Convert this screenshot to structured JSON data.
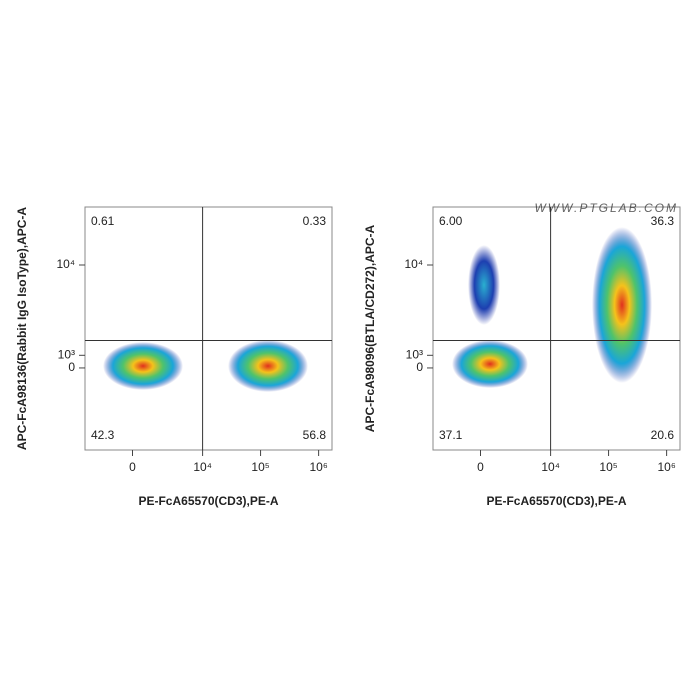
{
  "chart_data": [
    {
      "type": "density",
      "x_label": "PE-FcA65570(CD3),PE-A",
      "y_label": "APC-FcA98136(Rabbit IgG IsoType),APC-A",
      "xscale": "biexponential",
      "yscale": "biexponential",
      "xlim": [
        -4000,
        1700000
      ],
      "ylim": [
        -7400,
        20600
      ],
      "xticks": [
        0,
        {
          "value": 10000,
          "label": "10⁴"
        },
        {
          "value": 100000,
          "label": "10⁵"
        },
        {
          "value": 1000000,
          "label": "10⁶"
        }
      ],
      "yticks": [
        0,
        {
          "value": 1000,
          "label": "10³"
        },
        {
          "value": 10000,
          "label": "10⁴"
        }
      ],
      "gate": {
        "x": 10000,
        "y": 2200
      },
      "quadrant_order": [
        "top-left",
        "top-right",
        "bottom-left",
        "bottom-right"
      ],
      "values": [
        0.61,
        0.33,
        42.3,
        56.8
      ]
    },
    {
      "type": "density",
      "x_label": "PE-FcA65570(CD3),PE-A",
      "y_label": "APC-FcA98096(BTLA/CD272),APC-A",
      "xscale": "biexponential",
      "yscale": "biexponential",
      "xlim": [
        -4000,
        1700000
      ],
      "ylim": [
        -7400,
        20600
      ],
      "xticks": [
        0,
        {
          "value": 10000,
          "label": "10⁴"
        },
        {
          "value": 100000,
          "label": "10⁵"
        },
        {
          "value": 1000000,
          "label": "10⁶"
        }
      ],
      "yticks": [
        0,
        {
          "value": 1000,
          "label": "10³"
        },
        {
          "value": 10000,
          "label": "10⁴"
        }
      ],
      "gate": {
        "x": 10000,
        "y": 2200
      },
      "quadrant_order": [
        "top-left",
        "top-right",
        "bottom-left",
        "bottom-right"
      ],
      "values": [
        6,
        36.3,
        37.1,
        20.6
      ],
      "value_labels": [
        "6.00",
        "36.3",
        "37.1",
        "20.6"
      ],
      "watermark": "WWW.PTGLAB.COM"
    }
  ]
}
